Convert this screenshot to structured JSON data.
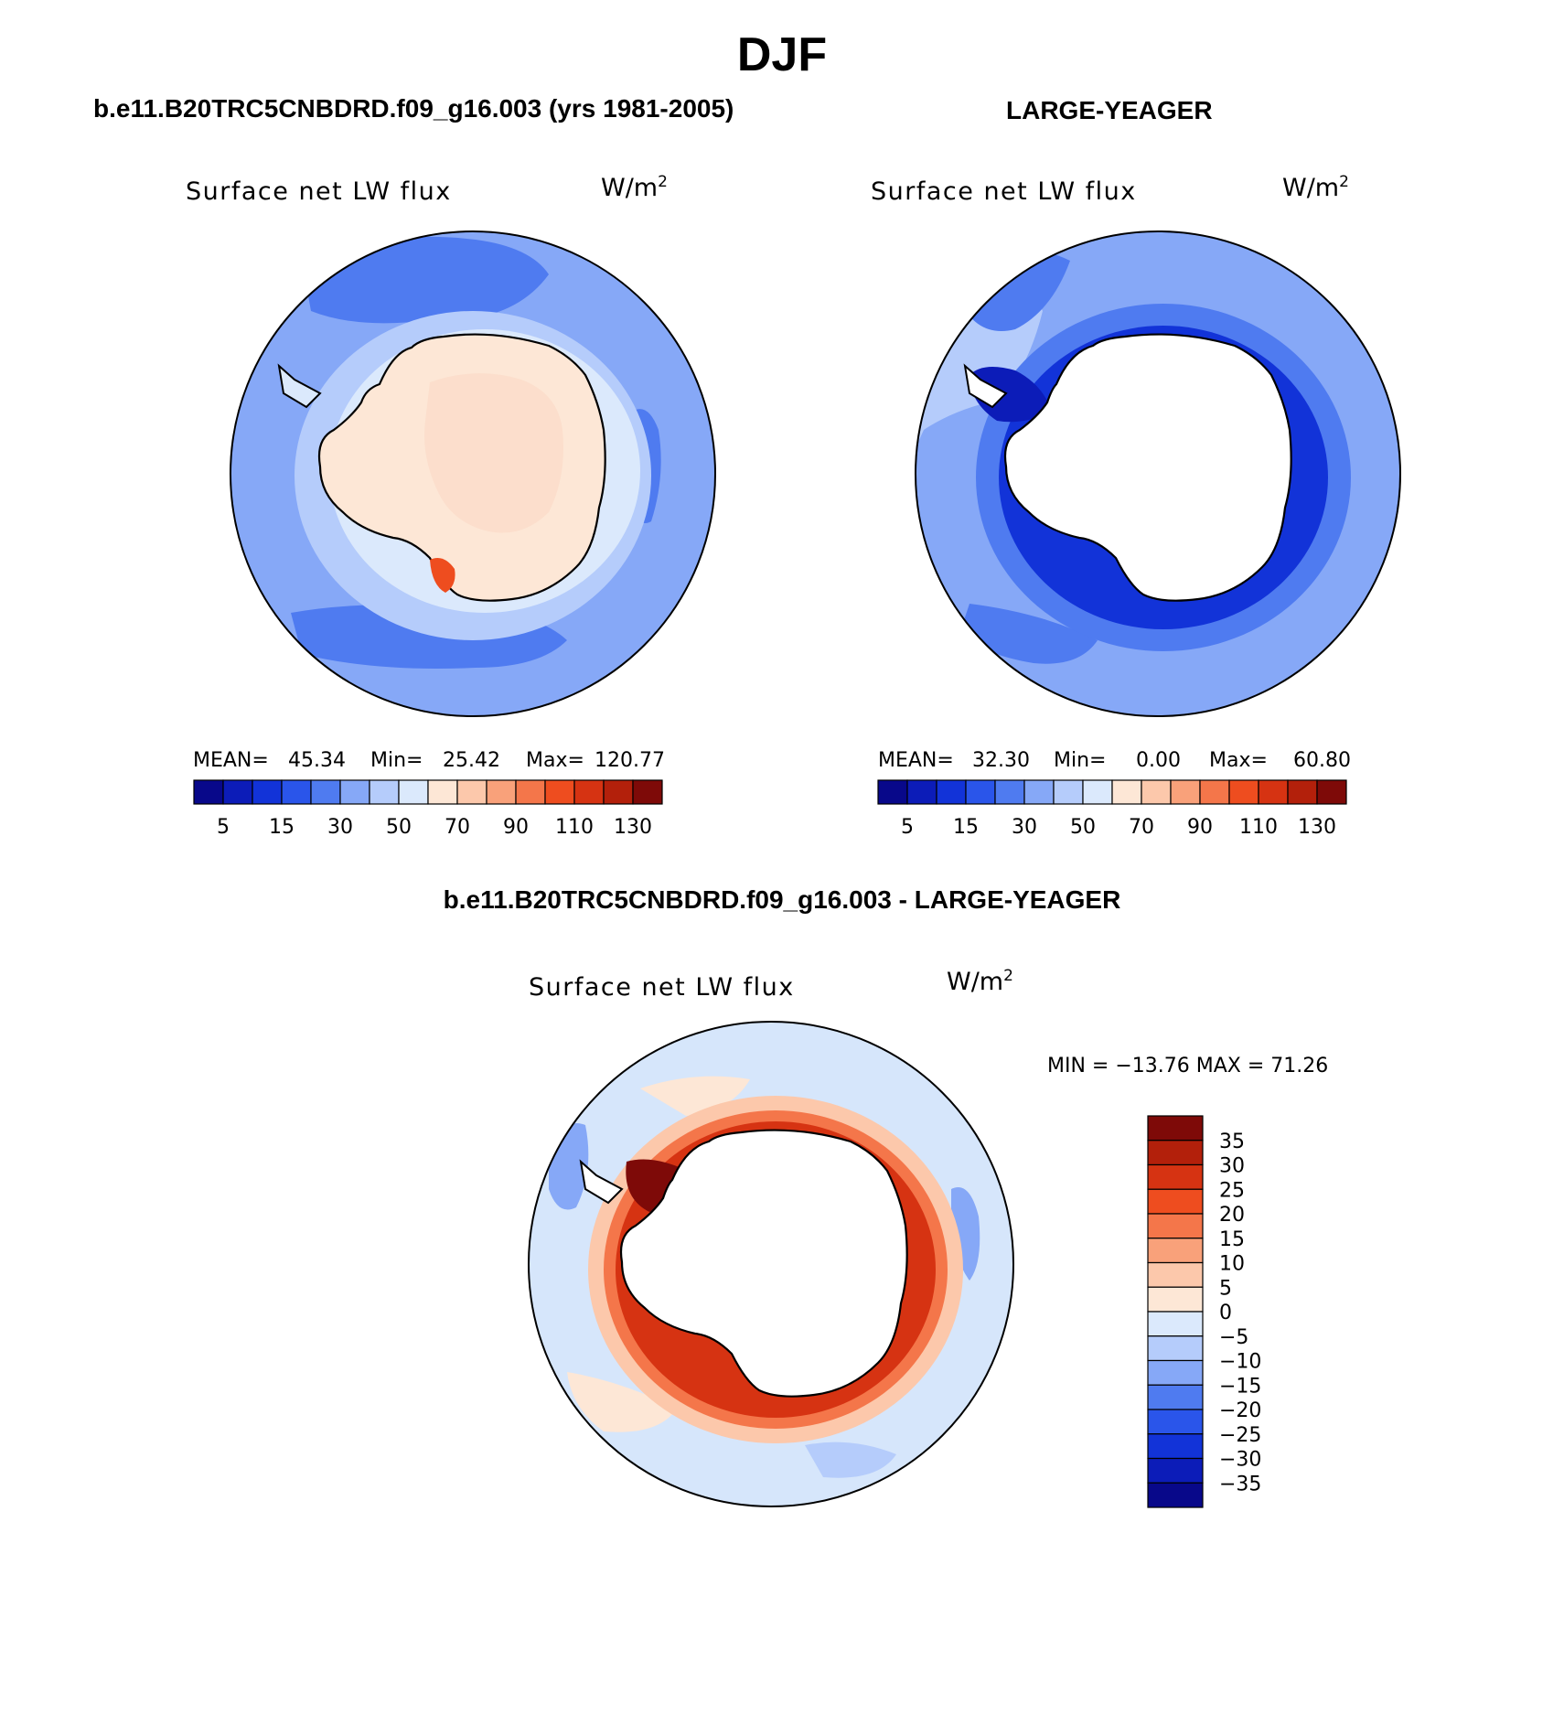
{
  "figure": {
    "title": "DJF",
    "left_case": "b.e11.B20TRC5CNBDRD.f09_g16.003 (yrs 1981-2005)",
    "right_case": "LARGE-YEAGER",
    "diff_case": "b.e11.B20TRC5CNBDRD.f09_g16.003 - LARGE-YEAGER"
  },
  "chart_data": [
    {
      "type": "heatmap",
      "projection": "south-polar-stereographic",
      "title": "Surface net LW flux",
      "units": "W/m",
      "units_sup": "2",
      "stats": {
        "mean_label": "MEAN=",
        "mean": "45.34",
        "min_label": "Min=",
        "min": "25.42",
        "max_label": "Max=",
        "max": "120.77"
      },
      "colorbar": {
        "orientation": "horizontal",
        "tick_labels": [
          "5",
          "15",
          "30",
          "50",
          "70",
          "90",
          "110",
          "130"
        ],
        "colors": [
          "#08088a",
          "#0c1cb8",
          "#1233d8",
          "#2a55ea",
          "#4f7bf0",
          "#86a8f7",
          "#b5ccfb",
          "#dbe9fc",
          "#fde7d6",
          "#fcc8ab",
          "#f9a17a",
          "#f4764a",
          "#ee4d1f",
          "#d63312",
          "#b3200b",
          "#7e0a08"
        ]
      },
      "field": {
        "ocean_color": "#86a8f7",
        "antarctica_color": "#fde7d6",
        "description_regions": "Open ocean 30-50, band of 15-30 south of Pacific sector, coastal 50-70, continent 70-90, hot spot 90-110 near Ross Sea"
      }
    },
    {
      "type": "heatmap",
      "projection": "south-polar-stereographic",
      "title": "Surface net LW flux",
      "units": "W/m",
      "units_sup": "2",
      "stats": {
        "mean_label": "MEAN=",
        "mean": "32.30",
        "min_label": "Min=",
        "min": "0.00",
        "max_label": "Max=",
        "max": "60.80"
      },
      "colorbar": {
        "orientation": "horizontal",
        "tick_labels": [
          "5",
          "15",
          "30",
          "50",
          "70",
          "90",
          "110",
          "130"
        ],
        "colors": [
          "#08088a",
          "#0c1cb8",
          "#1233d8",
          "#2a55ea",
          "#4f7bf0",
          "#86a8f7",
          "#b5ccfb",
          "#dbe9fc",
          "#fde7d6",
          "#fcc8ab",
          "#f9a17a",
          "#f4764a",
          "#ee4d1f",
          "#d63312",
          "#b3200b",
          "#7e0a08"
        ]
      },
      "field": {
        "ocean_color": "#86a8f7",
        "antarctica_color": "#ffffff",
        "description_regions": "Open ocean 30-50, coastal ring 5-30 (dark blue), continent missing (white)"
      }
    },
    {
      "type": "heatmap",
      "projection": "south-polar-stereographic",
      "title": "Surface net LW flux",
      "units": "W/m",
      "units_sup": "2",
      "stats": {
        "text": "MIN = −13.76 MAX =   71.26",
        "min": "−13.76",
        "max": "71.26"
      },
      "colorbar": {
        "orientation": "vertical",
        "tick_labels": [
          "35",
          "30",
          "25",
          "20",
          "15",
          "10",
          "5",
          "0",
          "−5",
          "−10",
          "−15",
          "−20",
          "−25",
          "−30",
          "−35"
        ],
        "colors": [
          "#7e0a08",
          "#b3200b",
          "#d63312",
          "#ee4d1f",
          "#f4764a",
          "#f9a17a",
          "#fcc8ab",
          "#fde7d6",
          "#dbe9fc",
          "#b5ccfb",
          "#86a8f7",
          "#4f7bf0",
          "#2a55ea",
          "#1233d8",
          "#0c1cb8",
          "#08088a"
        ]
      },
      "field": {
        "ocean_color": "#d6e6fb",
        "antarctica_color": "#ffffff",
        "description_regions": "Ocean mostly -5 to 0, patches -10 to -15 and 0 to 5, coastal ring strongly positive 20-35+"
      }
    }
  ]
}
